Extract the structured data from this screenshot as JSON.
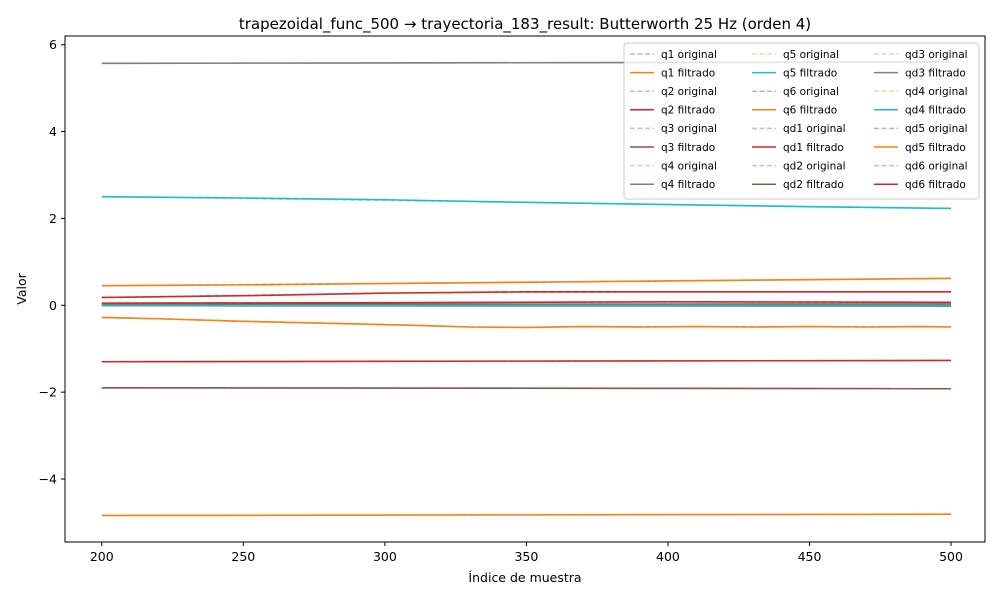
{
  "chart_data": {
    "type": "line",
    "title": "trapezoidal_func_500 → trayectoria_183_result: Butterworth 25 Hz (orden 4)",
    "xlabel": "Índice de muestra",
    "ylabel": "Valor",
    "xlim": [
      187,
      512
    ],
    "ylim": [
      -5.45,
      6.2
    ],
    "xticks": [
      200,
      250,
      300,
      350,
      400,
      450,
      500
    ],
    "xtick_labels": [
      "200",
      "250",
      "300",
      "350",
      "400",
      "450",
      "500"
    ],
    "yticks": [
      -4,
      -2,
      0,
      2,
      4,
      6
    ],
    "ytick_labels": [
      "−4",
      "−2",
      "0",
      "2",
      "4",
      "6"
    ],
    "grid": false,
    "legend_position": "top-right",
    "legend_columns": 3,
    "series": [
      {
        "name": "q1 original",
        "style": "dashed",
        "color": "#1f77b4",
        "x": [
          200,
          500
        ],
        "y": [
          -4.84,
          -4.81
        ]
      },
      {
        "name": "q1 filtrado",
        "style": "solid",
        "color": "#ff7f0e",
        "x": [
          200,
          500
        ],
        "y": [
          -4.84,
          -4.81
        ]
      },
      {
        "name": "q2 original",
        "style": "dashed",
        "color": "#2ca02c",
        "x": [
          200,
          300,
          400,
          500
        ],
        "y": [
          0.18,
          0.28,
          0.31,
          0.31
        ]
      },
      {
        "name": "q2 filtrado",
        "style": "solid",
        "color": "#d62728",
        "x": [
          200,
          250,
          300,
          350,
          400,
          450,
          500
        ],
        "y": [
          0.18,
          0.22,
          0.28,
          0.31,
          0.31,
          0.31,
          0.31
        ]
      },
      {
        "name": "q3 original",
        "style": "dashed",
        "color": "#9467bd",
        "x": [
          200,
          500
        ],
        "y": [
          -1.9,
          -1.92
        ]
      },
      {
        "name": "q3 filtrado",
        "style": "solid",
        "color": "#8c564b",
        "x": [
          200,
          500
        ],
        "y": [
          -1.9,
          -1.92
        ]
      },
      {
        "name": "q4 original",
        "style": "dashed",
        "color": "#e377c2",
        "x": [
          200,
          500
        ],
        "y": [
          5.57,
          5.6
        ]
      },
      {
        "name": "q4 filtrado",
        "style": "solid",
        "color": "#7f7f7f",
        "x": [
          200,
          500
        ],
        "y": [
          5.57,
          5.6
        ]
      },
      {
        "name": "q5 original",
        "style": "dashed",
        "color": "#bcbd22",
        "x": [
          200,
          500
        ],
        "y": [
          2.5,
          2.23
        ]
      },
      {
        "name": "q5 filtrado",
        "style": "solid",
        "color": "#17becf",
        "x": [
          200,
          250,
          300,
          350,
          400,
          450,
          500
        ],
        "y": [
          2.5,
          2.47,
          2.43,
          2.37,
          2.32,
          2.27,
          2.23
        ]
      },
      {
        "name": "q6 original",
        "style": "dashed",
        "color": "#1f77b4",
        "x": [
          200,
          500
        ],
        "y": [
          0.45,
          0.62
        ]
      },
      {
        "name": "q6 filtrado",
        "style": "solid",
        "color": "#ff7f0e",
        "x": [
          200,
          250,
          300,
          350,
          400,
          450,
          500
        ],
        "y": [
          0.45,
          0.47,
          0.5,
          0.53,
          0.56,
          0.59,
          0.62
        ]
      },
      {
        "name": "qd1 original",
        "style": "dashed",
        "color": "#2ca02c",
        "x": [
          200,
          500
        ],
        "y": [
          -1.3,
          -1.27
        ]
      },
      {
        "name": "qd1 filtrado",
        "style": "solid",
        "color": "#d62728",
        "x": [
          200,
          500
        ],
        "y": [
          -1.3,
          -1.27
        ]
      },
      {
        "name": "qd2 original",
        "style": "dashed",
        "color": "#9467bd",
        "x": [
          200,
          500
        ],
        "y": [
          0.02,
          0.03
        ]
      },
      {
        "name": "qd2 filtrado",
        "style": "solid",
        "color": "#8c564b",
        "x": [
          200,
          500
        ],
        "y": [
          0.02,
          0.03
        ]
      },
      {
        "name": "qd3 original",
        "style": "dashed",
        "color": "#e377c2",
        "x": [
          200,
          500
        ],
        "y": [
          -0.01,
          -0.02
        ]
      },
      {
        "name": "qd3 filtrado",
        "style": "solid",
        "color": "#7f7f7f",
        "x": [
          200,
          500
        ],
        "y": [
          -0.01,
          -0.02
        ]
      },
      {
        "name": "qd4 original",
        "style": "dashed",
        "color": "#bcbd22",
        "x": [
          200,
          500
        ],
        "y": [
          0.0,
          0.0
        ]
      },
      {
        "name": "qd4 filtrado",
        "style": "solid",
        "color": "#17becf",
        "x": [
          200,
          500
        ],
        "y": [
          0.0,
          0.0
        ]
      },
      {
        "name": "qd5 original",
        "style": "dashed",
        "color": "#1f77b4",
        "x": [
          200,
          220,
          250,
          290,
          310,
          330,
          350,
          370,
          390,
          410,
          430,
          450,
          470,
          490,
          500
        ],
        "y": [
          -0.28,
          -0.31,
          -0.37,
          -0.43,
          -0.46,
          -0.5,
          -0.51,
          -0.49,
          -0.5,
          -0.49,
          -0.5,
          -0.49,
          -0.5,
          -0.49,
          -0.5
        ]
      },
      {
        "name": "qd5 filtrado",
        "style": "solid",
        "color": "#ff7f0e",
        "x": [
          200,
          220,
          250,
          290,
          310,
          330,
          350,
          370,
          390,
          410,
          430,
          450,
          470,
          490,
          500
        ],
        "y": [
          -0.28,
          -0.31,
          -0.37,
          -0.43,
          -0.46,
          -0.5,
          -0.51,
          -0.49,
          -0.5,
          -0.49,
          -0.5,
          -0.49,
          -0.5,
          -0.49,
          -0.5
        ]
      },
      {
        "name": "qd6 original",
        "style": "dashed",
        "color": "#2ca02c",
        "x": [
          200,
          300,
          400,
          500
        ],
        "y": [
          0.05,
          0.06,
          0.08,
          0.07
        ]
      },
      {
        "name": "qd6 filtrado",
        "style": "solid",
        "color": "#d62728",
        "x": [
          200,
          300,
          400,
          500
        ],
        "y": [
          0.05,
          0.06,
          0.08,
          0.07
        ]
      }
    ]
  }
}
